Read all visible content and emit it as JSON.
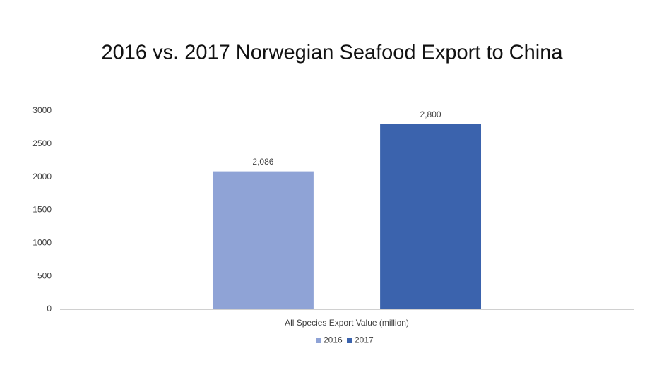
{
  "chart_data": {
    "type": "bar",
    "title": "2016 vs. 2017 Norwegian Seafood Export to China",
    "categories": [
      "All Species Export Value (million)"
    ],
    "series": [
      {
        "name": "2016",
        "color": "#8fa3d6",
        "values": [
          2086
        ],
        "value_labels": [
          "2,086"
        ]
      },
      {
        "name": "2017",
        "color": "#3b63ad",
        "values": [
          2800
        ],
        "value_labels": [
          "2,800"
        ]
      }
    ],
    "ylim": [
      0,
      3000
    ],
    "yticks": [
      0,
      500,
      1000,
      1500,
      2000,
      2500,
      3000
    ],
    "grid": false,
    "legend": "bottom"
  }
}
